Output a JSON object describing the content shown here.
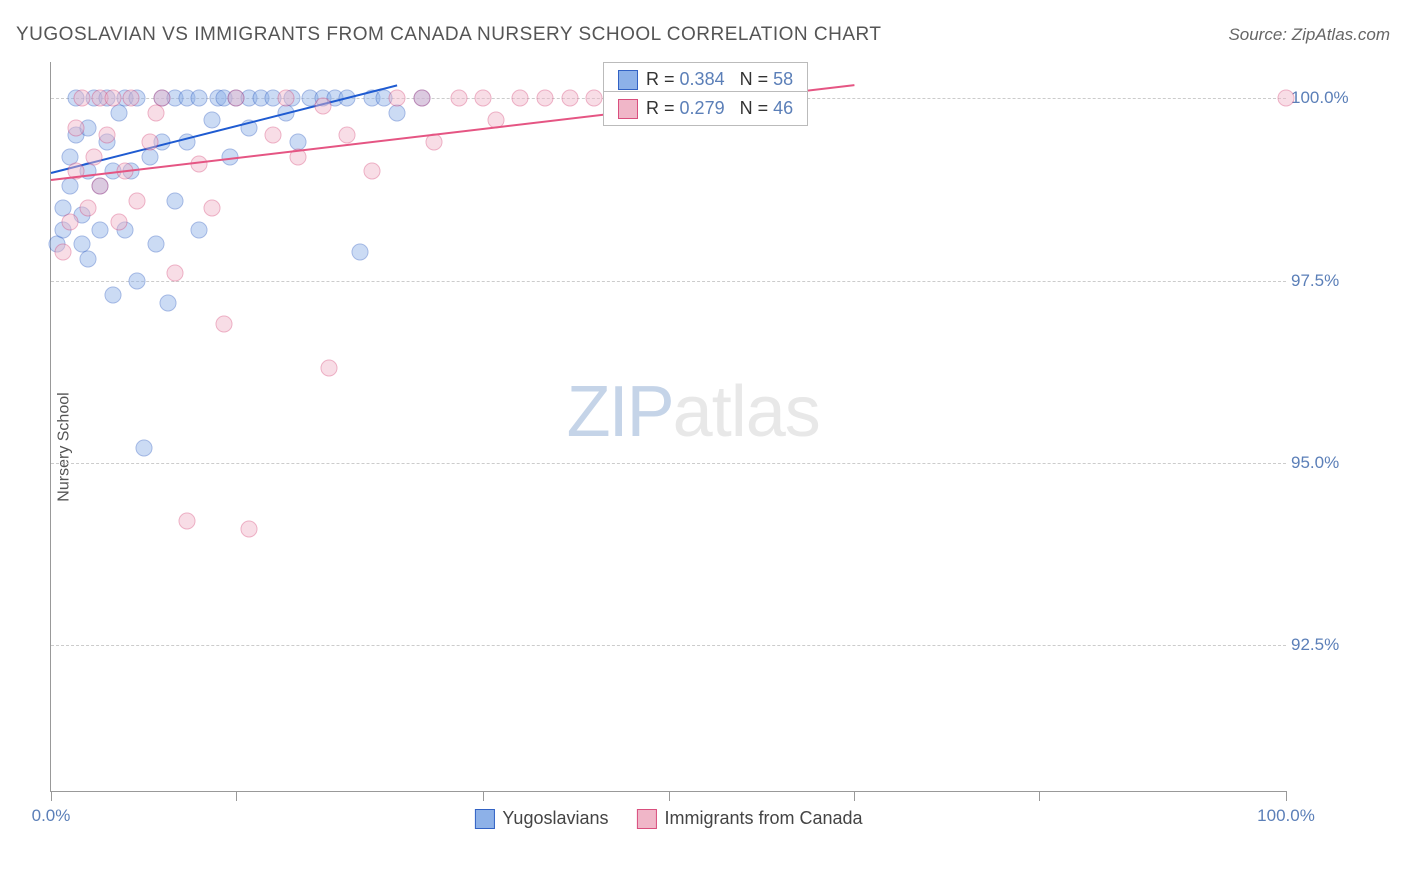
{
  "header": {
    "title": "YUGOSLAVIAN VS IMMIGRANTS FROM CANADA NURSERY SCHOOL CORRELATION CHART",
    "source": "Source: ZipAtlas.com"
  },
  "watermark": {
    "part1": "ZIP",
    "part2": "atlas"
  },
  "chart": {
    "type": "scatter",
    "y_axis_label": "Nursery School",
    "background_color": "#ffffff",
    "grid_color": "#cccccc",
    "axis_line_color": "#999999",
    "tick_label_color": "#5b7fb8",
    "tick_fontsize": 17,
    "xlim": [
      0,
      100
    ],
    "ylim": [
      90.5,
      100.5
    ],
    "x_ticks": [
      {
        "pos": 0,
        "label": "0.0%"
      },
      {
        "pos": 15,
        "label": ""
      },
      {
        "pos": 35,
        "label": ""
      },
      {
        "pos": 50,
        "label": ""
      },
      {
        "pos": 65,
        "label": ""
      },
      {
        "pos": 80,
        "label": ""
      },
      {
        "pos": 100,
        "label": "100.0%"
      }
    ],
    "y_ticks": [
      {
        "pos": 92.5,
        "label": "92.5%"
      },
      {
        "pos": 95.0,
        "label": "95.0%"
      },
      {
        "pos": 97.5,
        "label": "97.5%"
      },
      {
        "pos": 100.0,
        "label": "100.0%"
      }
    ],
    "marker_radius": 8.5,
    "marker_opacity": 0.45,
    "series": [
      {
        "name": "Yugoslavians",
        "fill_color": "#8db1e8",
        "stroke_color": "#3262c4",
        "line_color": "#1f5bd1",
        "r_value": "0.384",
        "n_value": "58",
        "trend": {
          "x1": 0,
          "y1": 99.0,
          "x2": 28,
          "y2": 100.2
        },
        "points": [
          [
            0.5,
            98.0
          ],
          [
            1,
            98.2
          ],
          [
            1,
            98.5
          ],
          [
            1.5,
            98.8
          ],
          [
            1.5,
            99.2
          ],
          [
            2,
            99.5
          ],
          [
            2,
            100
          ],
          [
            2.5,
            98.0
          ],
          [
            2.5,
            98.4
          ],
          [
            3,
            97.8
          ],
          [
            3,
            99.0
          ],
          [
            3,
            99.6
          ],
          [
            3.5,
            100
          ],
          [
            4,
            98.2
          ],
          [
            4,
            98.8
          ],
          [
            4.5,
            99.4
          ],
          [
            4.5,
            100
          ],
          [
            5,
            97.3
          ],
          [
            5,
            99.0
          ],
          [
            5.5,
            99.8
          ],
          [
            6,
            100
          ],
          [
            6,
            98.2
          ],
          [
            6.5,
            99.0
          ],
          [
            7,
            100
          ],
          [
            7,
            97.5
          ],
          [
            7.5,
            95.2
          ],
          [
            8,
            99.2
          ],
          [
            8.5,
            98.0
          ],
          [
            9,
            100
          ],
          [
            9,
            99.4
          ],
          [
            9.5,
            97.2
          ],
          [
            10,
            100
          ],
          [
            10,
            98.6
          ],
          [
            11,
            99.4
          ],
          [
            11,
            100
          ],
          [
            12,
            98.2
          ],
          [
            12,
            100
          ],
          [
            13,
            99.7
          ],
          [
            13.5,
            100
          ],
          [
            14,
            100
          ],
          [
            14.5,
            99.2
          ],
          [
            15,
            100
          ],
          [
            16,
            99.6
          ],
          [
            16,
            100
          ],
          [
            17,
            100
          ],
          [
            18,
            100
          ],
          [
            19,
            99.8
          ],
          [
            19.5,
            100
          ],
          [
            20,
            99.4
          ],
          [
            21,
            100
          ],
          [
            22,
            100
          ],
          [
            23,
            100
          ],
          [
            24,
            100
          ],
          [
            25,
            97.9
          ],
          [
            26,
            100
          ],
          [
            27,
            100
          ],
          [
            28,
            99.8
          ],
          [
            30,
            100
          ]
        ]
      },
      {
        "name": "Immigrants from Canada",
        "fill_color": "#f0b6c8",
        "stroke_color": "#d94f7e",
        "line_color": "#e55583",
        "r_value": "0.279",
        "n_value": "46",
        "trend": {
          "x1": 0,
          "y1": 98.9,
          "x2": 65,
          "y2": 100.2
        },
        "points": [
          [
            1,
            97.9
          ],
          [
            1.5,
            98.3
          ],
          [
            2,
            99.0
          ],
          [
            2,
            99.6
          ],
          [
            2.5,
            100
          ],
          [
            3,
            98.5
          ],
          [
            3.5,
            99.2
          ],
          [
            4,
            100
          ],
          [
            4,
            98.8
          ],
          [
            4.5,
            99.5
          ],
          [
            5,
            100
          ],
          [
            5.5,
            98.3
          ],
          [
            6,
            99.0
          ],
          [
            6.5,
            100
          ],
          [
            7,
            98.6
          ],
          [
            8,
            99.4
          ],
          [
            8.5,
            99.8
          ],
          [
            9,
            100
          ],
          [
            10,
            97.6
          ],
          [
            11,
            94.2
          ],
          [
            12,
            99.1
          ],
          [
            13,
            98.5
          ],
          [
            14,
            96.9
          ],
          [
            15,
            100
          ],
          [
            16,
            94.1
          ],
          [
            18,
            99.5
          ],
          [
            19,
            100
          ],
          [
            20,
            99.2
          ],
          [
            22,
            99.9
          ],
          [
            22.5,
            96.3
          ],
          [
            24,
            99.5
          ],
          [
            26,
            99.0
          ],
          [
            28,
            100
          ],
          [
            30,
            100
          ],
          [
            31,
            99.4
          ],
          [
            33,
            100
          ],
          [
            35,
            100
          ],
          [
            36,
            99.7
          ],
          [
            38,
            100
          ],
          [
            40,
            100
          ],
          [
            42,
            100
          ],
          [
            44,
            100
          ],
          [
            47,
            100
          ],
          [
            50,
            100
          ],
          [
            60,
            100
          ],
          [
            100,
            100
          ]
        ]
      }
    ],
    "legend_boxes": [
      {
        "top_pct": 0,
        "left_pct": 44.7,
        "series_idx": 0
      },
      {
        "top_pct": 4.0,
        "left_pct": 44.7,
        "series_idx": 1
      }
    ]
  }
}
